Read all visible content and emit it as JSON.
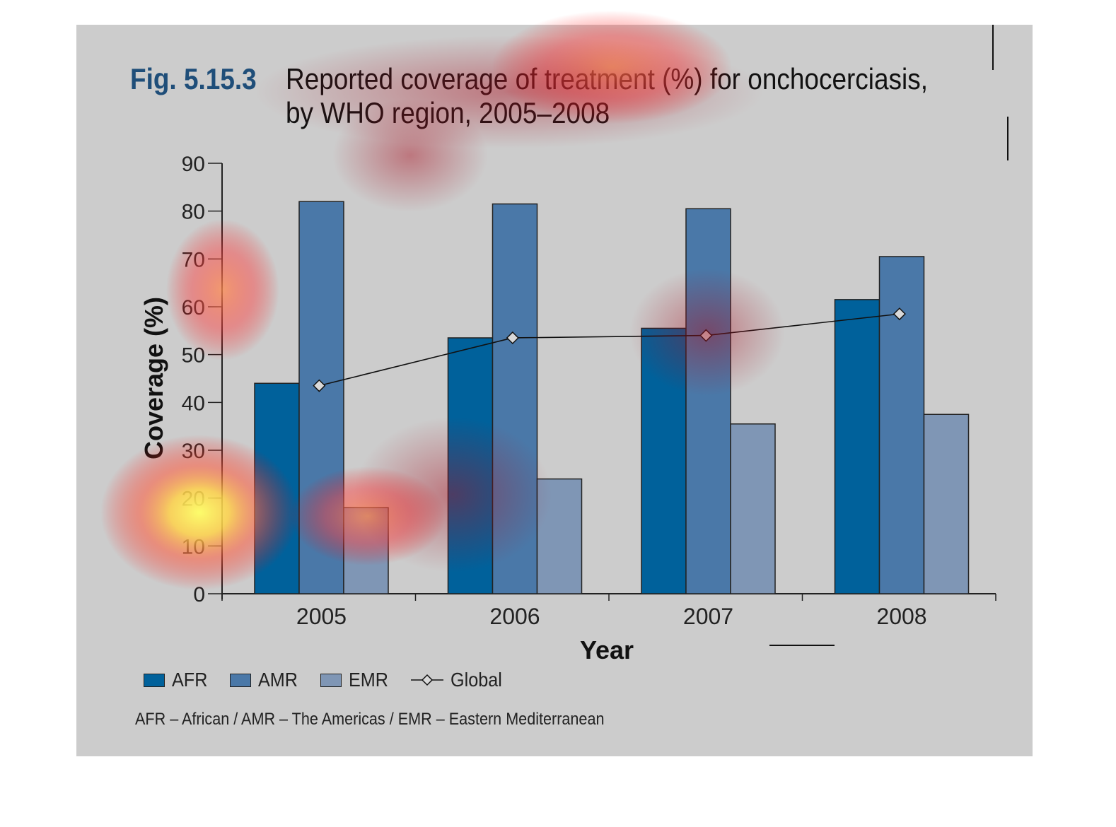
{
  "figure": {
    "number": "Fig. 5.15.3",
    "title_line_1": "Reported coverage of treatment (%) for onchocerciasis,",
    "title_line_2": "by WHO region, 2005–2008",
    "footnote": "AFR – African / AMR – The Americas / EMR – Eastern Mediterranean"
  },
  "colors": {
    "panel": "#cccccc",
    "afr": "#00619b",
    "amr": "#4a78a8",
    "emr": "#7f96b5",
    "global_line": "#111111",
    "global_marker": "#d9d9d9",
    "fig_number": "#1f4e79"
  },
  "legend": [
    {
      "key": "afr",
      "label": "AFR"
    },
    {
      "key": "amr",
      "label": "AMR"
    },
    {
      "key": "emr",
      "label": "EMR"
    },
    {
      "key": "global",
      "label": "Global"
    }
  ],
  "chart_data": {
    "type": "bar",
    "title": "Reported coverage of treatment (%) for onchocerciasis, by WHO region, 2005–2008",
    "xlabel": "Year",
    "ylabel": "Coverage (%)",
    "ylim": [
      0,
      90
    ],
    "yticks": [
      0,
      10,
      20,
      30,
      40,
      50,
      60,
      70,
      80,
      90
    ],
    "categories": [
      "2005",
      "2006",
      "2007",
      "2008"
    ],
    "series": [
      {
        "name": "AFR",
        "key": "afr",
        "values": [
          44,
          53.5,
          55.5,
          61.5
        ]
      },
      {
        "name": "AMR",
        "key": "amr",
        "values": [
          82,
          81.5,
          80.5,
          70.5
        ]
      },
      {
        "name": "EMR",
        "key": "emr",
        "values": [
          18,
          24,
          35.5,
          37.5
        ]
      }
    ],
    "line_series": {
      "name": "Global",
      "key": "global",
      "values": [
        43.5,
        53.5,
        54,
        58.5
      ]
    },
    "legend_position": "bottom-left",
    "grid": false,
    "attention_overlay": true
  }
}
